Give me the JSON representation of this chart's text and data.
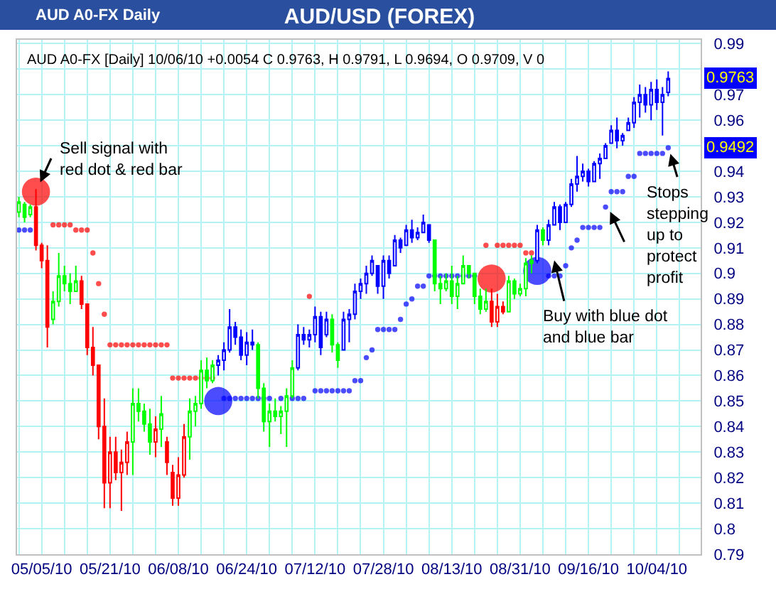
{
  "chart_data": {
    "type": "candlestick",
    "title": "AUD/USD (FOREX)",
    "subtitle": "AUD A0-FX Daily",
    "annotations": [
      "AUD A0-FX [Daily] 10/06/10 +0.0054 C 0.9763, H 0.9791, L 0.9694, O 0.9709, V 0",
      "Sell signal with red dot & red bar",
      "Buy with blue dot and blue bar",
      "Stops stepping up to protect profit",
      "0.9763",
      "0.9492"
    ],
    "categories": [
      null,
      null,
      null,
      null,
      "05/05/10",
      null,
      null,
      null,
      null,
      null,
      null,
      null,
      null,
      null,
      null,
      null,
      "05/21/10",
      null,
      null,
      null,
      null,
      null,
      null,
      null,
      null,
      null,
      null,
      null,
      "06/08/10",
      null,
      null,
      null,
      null,
      null,
      null,
      null,
      null,
      null,
      null,
      null,
      "06/24/10",
      null,
      null,
      null,
      null,
      null,
      null,
      null,
      null,
      null,
      null,
      null,
      "07/12/10",
      null,
      null,
      null,
      null,
      null,
      null,
      null,
      null,
      null,
      null,
      null,
      "07/28/10",
      null,
      null,
      null,
      null,
      null,
      null,
      null,
      null,
      null,
      null,
      null,
      "08/13/10",
      null,
      null,
      null,
      null,
      null,
      null,
      null,
      null,
      null,
      null,
      null,
      "08/31/10",
      null,
      null,
      null,
      null,
      null,
      null,
      null,
      null,
      null,
      null,
      null,
      "09/16/10",
      null,
      null,
      null,
      null,
      null,
      null,
      null,
      null,
      null,
      null,
      null,
      "10/04/10",
      null,
      null
    ],
    "ohlc": [
      [
        0.924,
        0.93,
        0.922,
        0.928
      ],
      [
        0.927,
        0.928,
        0.92,
        0.922
      ],
      [
        0.923,
        0.927,
        0.922,
        0.926
      ],
      [
        0.926,
        0.933,
        0.909,
        0.911
      ],
      [
        0.911,
        0.912,
        0.902,
        0.905
      ],
      [
        0.905,
        0.911,
        0.871,
        0.879
      ],
      [
        0.882,
        0.893,
        0.88,
        0.889
      ],
      [
        0.889,
        0.908,
        0.887,
        0.899
      ],
      [
        0.899,
        0.903,
        0.893,
        0.896
      ],
      [
        0.896,
        0.9,
        0.888,
        0.893
      ],
      [
        0.893,
        0.903,
        0.893,
        0.897
      ],
      [
        0.897,
        0.899,
        0.886,
        0.888
      ],
      [
        0.888,
        0.888,
        0.868,
        0.871
      ],
      [
        0.871,
        0.879,
        0.86,
        0.864
      ],
      [
        0.864,
        0.864,
        0.835,
        0.84
      ],
      [
        0.84,
        0.851,
        0.808,
        0.818
      ],
      [
        0.818,
        0.836,
        0.808,
        0.83
      ],
      [
        0.83,
        0.836,
        0.819,
        0.822
      ],
      [
        0.822,
        0.831,
        0.807,
        0.826
      ],
      [
        0.826,
        0.838,
        0.821,
        0.834
      ],
      [
        0.834,
        0.855,
        0.821,
        0.849
      ],
      [
        0.849,
        0.855,
        0.842,
        0.846
      ],
      [
        0.846,
        0.849,
        0.838,
        0.841
      ],
      [
        0.841,
        0.847,
        0.829,
        0.834
      ],
      [
        0.834,
        0.844,
        0.828,
        0.839
      ],
      [
        0.839,
        0.852,
        0.832,
        0.845
      ],
      [
        0.834,
        0.836,
        0.821,
        0.826
      ],
      [
        0.822,
        0.825,
        0.809,
        0.812
      ],
      [
        0.812,
        0.828,
        0.809,
        0.821
      ],
      [
        0.821,
        0.841,
        0.82,
        0.836
      ],
      [
        0.836,
        0.851,
        0.827,
        0.846
      ],
      [
        0.846,
        0.852,
        0.84,
        0.849
      ],
      [
        0.849,
        0.866,
        0.847,
        0.862
      ],
      [
        0.862,
        0.867,
        0.855,
        0.858
      ],
      [
        0.858,
        0.866,
        0.857,
        0.864
      ],
      [
        0.864,
        0.868,
        0.86,
        0.866
      ],
      [
        0.866,
        0.873,
        0.862,
        0.87
      ],
      [
        0.87,
        0.886,
        0.869,
        0.879
      ],
      [
        0.879,
        0.881,
        0.872,
        0.875
      ],
      [
        0.875,
        0.878,
        0.866,
        0.868
      ],
      [
        0.868,
        0.877,
        0.864,
        0.873
      ],
      [
        0.873,
        0.878,
        0.87,
        0.872
      ],
      [
        0.872,
        0.873,
        0.851,
        0.855
      ],
      [
        0.855,
        0.857,
        0.838,
        0.842
      ],
      [
        0.842,
        0.849,
        0.832,
        0.846
      ],
      [
        0.846,
        0.851,
        0.842,
        0.844
      ],
      [
        0.844,
        0.848,
        0.837,
        0.846
      ],
      [
        0.846,
        0.855,
        0.832,
        0.852
      ],
      [
        0.852,
        0.866,
        0.851,
        0.863
      ],
      [
        0.863,
        0.88,
        0.862,
        0.876
      ],
      [
        0.876,
        0.879,
        0.872,
        0.874
      ],
      [
        0.874,
        0.878,
        0.871,
        0.876
      ],
      [
        0.876,
        0.887,
        0.873,
        0.883
      ],
      [
        0.883,
        0.885,
        0.868,
        0.871
      ],
      [
        0.876,
        0.885,
        0.875,
        0.882
      ],
      [
        0.882,
        0.884,
        0.869,
        0.872
      ],
      [
        0.872,
        0.873,
        0.863,
        0.866
      ],
      [
        0.87,
        0.885,
        0.87,
        0.882
      ],
      [
        0.882,
        0.886,
        0.873,
        0.884
      ],
      [
        0.884,
        0.896,
        0.882,
        0.893
      ],
      [
        0.893,
        0.898,
        0.89,
        0.896
      ],
      [
        0.896,
        0.903,
        0.892,
        0.9
      ],
      [
        0.9,
        0.907,
        0.899,
        0.905
      ],
      [
        0.903,
        0.903,
        0.892,
        0.895
      ],
      [
        0.895,
        0.907,
        0.89,
        0.905
      ],
      [
        0.905,
        0.907,
        0.898,
        0.9
      ],
      [
        0.903,
        0.915,
        0.903,
        0.913
      ],
      [
        0.913,
        0.914,
        0.908,
        0.91
      ],
      [
        0.911,
        0.919,
        0.911,
        0.917
      ],
      [
        0.917,
        0.921,
        0.912,
        0.914
      ],
      [
        0.914,
        0.918,
        0.913,
        0.916
      ],
      [
        0.916,
        0.923,
        0.916,
        0.92
      ],
      [
        0.919,
        0.919,
        0.912,
        0.913
      ],
      [
        0.913,
        0.913,
        0.893,
        0.896
      ],
      [
        0.896,
        0.899,
        0.888,
        0.894
      ],
      [
        0.894,
        0.9,
        0.893,
        0.897
      ],
      [
        0.897,
        0.903,
        0.888,
        0.891
      ],
      [
        0.891,
        0.899,
        0.886,
        0.896
      ],
      [
        0.896,
        0.907,
        0.896,
        0.903
      ],
      [
        0.903,
        0.903,
        0.898,
        0.9
      ],
      [
        0.9,
        0.9,
        0.888,
        0.891
      ],
      [
        0.891,
        0.894,
        0.884,
        0.886
      ],
      [
        0.886,
        0.894,
        0.885,
        0.889
      ],
      [
        0.889,
        0.894,
        0.879,
        0.881
      ],
      [
        0.881,
        0.892,
        0.879,
        0.887
      ],
      [
        0.887,
        0.889,
        0.884,
        0.885
      ],
      [
        0.885,
        0.899,
        0.885,
        0.897
      ],
      [
        0.897,
        0.898,
        0.89,
        0.892
      ],
      [
        0.892,
        0.896,
        0.891,
        0.894
      ],
      [
        0.894,
        0.906,
        0.891,
        0.904
      ],
      [
        0.904,
        0.907,
        0.9,
        0.905
      ],
      [
        0.905,
        0.919,
        0.904,
        0.917
      ],
      [
        0.917,
        0.918,
        0.911,
        0.913
      ],
      [
        0.913,
        0.921,
        0.911,
        0.919
      ],
      [
        0.919,
        0.928,
        0.919,
        0.926
      ],
      [
        0.926,
        0.927,
        0.917,
        0.92
      ],
      [
        0.92,
        0.928,
        0.92,
        0.927
      ],
      [
        0.927,
        0.937,
        0.926,
        0.935
      ],
      [
        0.935,
        0.946,
        0.932,
        0.938
      ],
      [
        0.938,
        0.943,
        0.936,
        0.94
      ],
      [
        0.94,
        0.941,
        0.934,
        0.936
      ],
      [
        0.936,
        0.944,
        0.936,
        0.943
      ],
      [
        0.943,
        0.947,
        0.937,
        0.945
      ],
      [
        0.945,
        0.951,
        0.945,
        0.95
      ],
      [
        0.951,
        0.958,
        0.951,
        0.956
      ],
      [
        0.956,
        0.961,
        0.949,
        0.952
      ],
      [
        0.952,
        0.955,
        0.95,
        0.954
      ],
      [
        0.956,
        0.961,
        0.956,
        0.959
      ],
      [
        0.959,
        0.969,
        0.957,
        0.967
      ],
      [
        0.967,
        0.974,
        0.961,
        0.97
      ],
      [
        0.97,
        0.973,
        0.963,
        0.966
      ],
      [
        0.966,
        0.975,
        0.96,
        0.972
      ],
      [
        0.972,
        0.976,
        0.964,
        0.967
      ],
      [
        0.967,
        0.973,
        0.954,
        0.97
      ],
      [
        0.9709,
        0.9791,
        0.9694,
        0.9763
      ]
    ],
    "colors": [
      "#00ff00",
      "#00ff00",
      "#00ff00",
      "#ff0000",
      "#ff0000",
      "#ff0000",
      "#00ff00",
      "#00ff00",
      "#00ff00",
      "#00ff00",
      "#00ff00",
      "#ff0000",
      "#ff0000",
      "#ff0000",
      "#ff0000",
      "#ff0000",
      "#ff0000",
      "#ff0000",
      "#ff0000",
      "#ff0000",
      "#00ff00",
      "#00ff00",
      "#00ff00",
      "#00ff00",
      "#ff0000",
      "#00ff00",
      "#ff0000",
      "#ff0000",
      "#ff0000",
      "#ff0000",
      "#00ff00",
      "#00ff00",
      "#00ff00",
      "#00ff00",
      "#00ff00",
      "#0000ff",
      "#0000ff",
      "#0000ff",
      "#0000ff",
      "#0000ff",
      "#0000ff",
      "#0000ff",
      "#00ff00",
      "#00ff00",
      "#00ff00",
      "#00ff00",
      "#00ff00",
      "#00ff00",
      "#00ff00",
      "#0000ff",
      "#0000ff",
      "#0000ff",
      "#0000ff",
      "#0000ff",
      "#0000ff",
      "#00ff00",
      "#00ff00",
      "#0000ff",
      "#0000ff",
      "#0000ff",
      "#0000ff",
      "#0000ff",
      "#0000ff",
      "#0000ff",
      "#0000ff",
      "#0000ff",
      "#0000ff",
      "#0000ff",
      "#0000ff",
      "#0000ff",
      "#0000ff",
      "#0000ff",
      "#0000ff",
      "#00ff00",
      "#00ff00",
      "#00ff00",
      "#00ff00",
      "#00ff00",
      "#00ff00",
      "#00ff00",
      "#00ff00",
      "#00ff00",
      "#00ff00",
      "#ff0000",
      "#ff0000",
      "#ff0000",
      "#00ff00",
      "#00ff00",
      "#00ff00",
      "#00ff00",
      "#00ff00",
      "#0000ff",
      "#00ff00",
      "#0000ff",
      "#0000ff",
      "#0000ff",
      "#0000ff",
      "#0000ff",
      "#0000ff",
      "#0000ff",
      "#0000ff",
      "#0000ff",
      "#0000ff",
      "#0000ff",
      "#0000ff",
      "#0000ff",
      "#0000ff",
      "#0000ff",
      "#0000ff",
      "#0000ff",
      "#0000ff",
      "#0000ff",
      "#0000ff",
      "#0000ff",
      "#0000ff"
    ],
    "series": [
      {
        "type": "bubble",
        "color": "#ff0000",
        "values": [
          null,
          null,
          null,
          0.932,
          null,
          null,
          0.919,
          0.919,
          0.919,
          0.919,
          0.917,
          0.917,
          0.917,
          0.908,
          0.896,
          0.884,
          0.872,
          0.872,
          0.872,
          0.872,
          0.872,
          0.872,
          0.872,
          0.872,
          0.872,
          0.872,
          0.872,
          0.859,
          0.859,
          0.859,
          0.859,
          0.859,
          0.859,
          0.859,
          0.859,
          null,
          null,
          null,
          null,
          null,
          null,
          null,
          null,
          null,
          null,
          null,
          null,
          null,
          null,
          null,
          null,
          0.891,
          null,
          null,
          null,
          null,
          null,
          null,
          null,
          null,
          null,
          null,
          null,
          null,
          null,
          null,
          null,
          null,
          null,
          null,
          null,
          null,
          null,
          null,
          null,
          null,
          null,
          null,
          null,
          null,
          null,
          null,
          0.911,
          0.898,
          0.911,
          0.911,
          0.911,
          0.911,
          0.911,
          0.908,
          0.908,
          null,
          null,
          null,
          null,
          null,
          null,
          null,
          null,
          null,
          null,
          null,
          null,
          null,
          null,
          null,
          null,
          null,
          null,
          null,
          null,
          null,
          null,
          null,
          null
        ],
        "sizes": [
          null,
          null,
          null,
          1,
          null,
          null,
          0.035,
          0.035,
          0.035,
          0.035,
          0.035,
          0.035,
          0.035,
          0.035,
          0.035,
          0.035,
          0.035,
          0.035,
          0.035,
          0.035,
          0.035,
          0.035,
          0.035,
          0.035,
          0.035,
          0.035,
          0.035,
          0.035,
          0.035,
          0.035,
          0.035,
          0.035,
          0.035,
          0.035,
          0.035,
          null,
          null,
          null,
          null,
          null,
          null,
          null,
          null,
          null,
          null,
          null,
          null,
          null,
          null,
          null,
          null,
          0.035,
          null,
          null,
          null,
          null,
          null,
          null,
          null,
          null,
          null,
          null,
          null,
          null,
          null,
          null,
          null,
          null,
          null,
          null,
          null,
          null,
          null,
          null,
          null,
          null,
          null,
          null,
          null,
          null,
          null,
          null,
          0.035,
          1,
          0.035,
          0.035,
          0.035,
          0.035,
          0.035,
          0.035,
          0.035,
          null,
          null,
          null,
          null,
          null,
          null,
          null,
          null,
          null,
          null,
          null,
          null,
          null,
          null,
          null,
          null,
          null,
          null,
          null,
          null,
          null,
          null,
          null,
          null
        ]
      },
      {
        "type": "bubble",
        "color": "#0000ff",
        "values": [
          0.917,
          0.917,
          0.917,
          null,
          null,
          null,
          null,
          null,
          null,
          null,
          null,
          null,
          null,
          null,
          null,
          null,
          null,
          null,
          null,
          null,
          null,
          null,
          null,
          null,
          null,
          null,
          null,
          null,
          null,
          null,
          null,
          null,
          null,
          null,
          null,
          0.85,
          0.851,
          0.851,
          0.851,
          0.851,
          0.851,
          0.851,
          0.851,
          0.851,
          0.851,
          null,
          0.851,
          null,
          0.851,
          0.851,
          0.851,
          null,
          0.854,
          0.854,
          0.854,
          0.854,
          0.854,
          0.854,
          0.854,
          0.858,
          0.858,
          0.867,
          0.87,
          0.878,
          0.878,
          0.878,
          0.878,
          0.882,
          0.888,
          0.89,
          0.895,
          0.895,
          0.899,
          0.899,
          0.899,
          0.899,
          0.899,
          0.899,
          0.899,
          0.899,
          0.899,
          null,
          null,
          null,
          null,
          null,
          null,
          null,
          null,
          null,
          null,
          0.901,
          null,
          0.899,
          0.899,
          0.899,
          0.903,
          0.91,
          0.913,
          0.918,
          0.918,
          0.918,
          0.918,
          0.926,
          0.932,
          0.932,
          0.932,
          0.938,
          0.938,
          0.947,
          0.947,
          0.947,
          0.947,
          0.947,
          0.9492
        ],
        "sizes": [
          0.035,
          0.035,
          0.035,
          null,
          null,
          null,
          null,
          null,
          null,
          null,
          null,
          null,
          null,
          null,
          null,
          null,
          null,
          null,
          null,
          null,
          null,
          null,
          null,
          null,
          null,
          null,
          null,
          null,
          null,
          null,
          null,
          null,
          null,
          null,
          null,
          1,
          0.035,
          0.035,
          0.035,
          0.035,
          0.035,
          0.035,
          0.035,
          0.035,
          0.035,
          null,
          0.035,
          null,
          0.035,
          0.035,
          0.035,
          null,
          0.035,
          0.035,
          0.035,
          0.035,
          0.035,
          0.035,
          0.035,
          0.035,
          0.035,
          0.035,
          0.035,
          0.035,
          0.035,
          0.035,
          0.035,
          0.035,
          0.035,
          0.035,
          0.035,
          0.035,
          0.035,
          0.035,
          0.035,
          0.035,
          0.035,
          0.035,
          0.035,
          0.035,
          0.035,
          null,
          null,
          null,
          null,
          null,
          null,
          null,
          null,
          null,
          null,
          1,
          null,
          0.035,
          0.035,
          0.035,
          0.035,
          0.035,
          0.035,
          0.035,
          0.035,
          0.035,
          0.035,
          0.035,
          0.035,
          0.035,
          0.035,
          0.035,
          0.035,
          0.035,
          0.035,
          0.035,
          0.035,
          0.035,
          0.035
        ]
      }
    ],
    "marker": "circle",
    "ylim": [
      0.79,
      0.9915
    ],
    "yticks": [
      0.79,
      0.8,
      0.81,
      0.82,
      0.83,
      0.84,
      0.85,
      0.86,
      0.87,
      0.88,
      0.89,
      0.9,
      0.91,
      0.92,
      0.93,
      0.94,
      {
        "value": 0.95,
        "label": null
      },
      0.96,
      0.97,
      {
        "value": 0.98,
        "label": null
      },
      0.99
    ],
    "grid": true
  }
}
